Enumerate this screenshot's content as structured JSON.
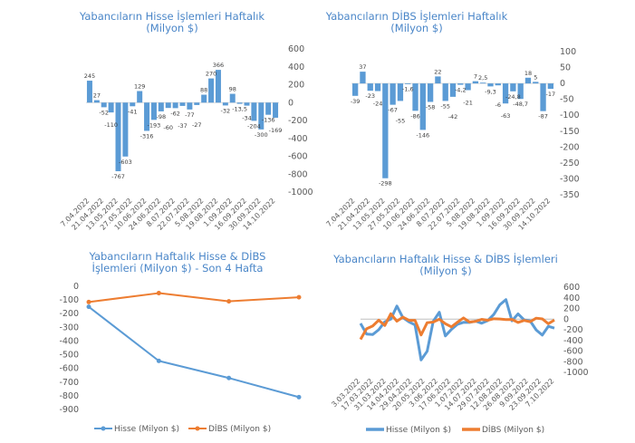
{
  "chart_data": [
    {
      "type": "bar",
      "title": "Yabancıların Hisse İşlemleri Haftalık (Milyon $)",
      "title_lines": [
        "Yabancıların Hisse İşlemleri Haftalık",
        "(Milyon $)"
      ],
      "xtick_labels": [
        "7.04.2022",
        "21.04.2022",
        "13.05.2022",
        "27.05.2022",
        "10.06.2022",
        "24.06.2022",
        "8.07.2022",
        "22.07.2022",
        "5.08.2022",
        "19.08.2022",
        "1.09.2022",
        "16.09.2022",
        "30.09.2022",
        "14.10.2022"
      ],
      "values": [
        245,
        27,
        -52,
        -110,
        -767,
        -603,
        -41,
        129,
        -316,
        -193,
        -98,
        -60,
        -62,
        -37,
        -77,
        -27,
        88,
        270,
        366,
        -32,
        98,
        -13.5,
        -34,
        -204,
        -300,
        -136,
        -169
      ],
      "data_labels": [
        "245",
        "27",
        "-52",
        "-110",
        "-767",
        "-603",
        "-41",
        "129",
        "-316",
        "-193",
        "-98",
        "-60",
        "-62",
        "-37",
        "-77",
        "-27",
        "88",
        "270",
        "366",
        "-32",
        "98",
        "-13,5",
        "-34",
        "-204",
        "-300",
        "-136",
        "-169"
      ],
      "ylim": [
        -1000,
        600
      ],
      "yticks": [
        "600",
        "400",
        "200",
        "0",
        "-200",
        "-400",
        "-600",
        "-800",
        "-1000"
      ],
      "y_axis_side": "right",
      "color": "#5b9bd5",
      "grid": false
    },
    {
      "type": "bar",
      "title": "Yabancıların DİBS İşlemleri Haftalık (Milyon $)",
      "title_lines": [
        "Yabancıların  DİBS İşlemleri Haftalık",
        "(Milyon $)"
      ],
      "xtick_labels": [
        "7.04.2022",
        "21.04.2022",
        "13.05.2022",
        "27.05.2022",
        "10.06.2022",
        "24.06.2022",
        "8.07.2022",
        "22.07.2022",
        "5.08.2022",
        "19.08.2022",
        "1.09.2022",
        "16.09.2022",
        "30.09.2022",
        "14.10.2022"
      ],
      "values": [
        -39,
        37,
        -23,
        -24,
        -298,
        -67,
        -55,
        -1.6,
        -86,
        -146,
        -58,
        22,
        -55,
        -42,
        -4.2,
        -21,
        7,
        2.5,
        -9.3,
        -6,
        -63,
        -24.8,
        -48.7,
        18,
        5,
        -87,
        -17
      ],
      "data_labels": [
        "-39",
        "37",
        "-23",
        "-24",
        "-298",
        "-67",
        "-55",
        "-1,6",
        "-86",
        "-146",
        "-58",
        "22",
        "-55",
        "-42",
        "-4,2",
        "-21",
        "7",
        "2,5",
        "-9,3",
        "-6",
        "-63",
        "-24,8",
        "-48,7",
        "18",
        "5",
        "-87",
        "-17"
      ],
      "ylim": [
        -350,
        100
      ],
      "yticks": [
        "100",
        "50",
        "0",
        "-50",
        "-100",
        "-150",
        "-200",
        "-250",
        "-300",
        "-350"
      ],
      "y_axis_side": "right",
      "color": "#5b9bd5",
      "grid": false
    },
    {
      "type": "line",
      "title": "Yabancıların Haftalık Hisse & DİBS İşlemleri (Milyon $) - Son 4 Hafta",
      "title_lines": [
        "Yabancıların  Haftalık  Hisse & DİBS",
        "İşlemleri  (Milyon $) - Son 4 Hafta"
      ],
      "ylim": [
        -900,
        0
      ],
      "yticks": [
        "0",
        "-100",
        "-200",
        "-300",
        "-400",
        "-500",
        "-600",
        "-700",
        "-800",
        "-900"
      ],
      "series": [
        {
          "name": "Hisse (Milyon $)",
          "color": "#5b9bd5",
          "values": [
            -150,
            -545,
            -670,
            -810
          ]
        },
        {
          "name": "DİBS (Milyon $)",
          "color": "#ed7d31",
          "values": [
            -115,
            -50,
            -110,
            -80
          ]
        }
      ],
      "legend": "bottom",
      "grid": false
    },
    {
      "type": "line",
      "title": "Yabancıların Haftalık Hisse & DİBS İşlemleri (Milyon $)",
      "title_lines": [
        "Yabancıların Haftalık Hisse & DİBS İşlemleri",
        "(Milyon $)"
      ],
      "xtick_labels": [
        "3.03.2022",
        "17.03.2022",
        "31.03.2022",
        "14.04.2022",
        "29.04.2022",
        "20.05.2022",
        "3.06.2022",
        "17.06.2022",
        "1.07.2022",
        "14.07.2022",
        "29.07.2022",
        "12.08.2022",
        "26.08.2022",
        "9.09.2022",
        "23.09.2022",
        "7.10.2022"
      ],
      "ylim": [
        -1000,
        600
      ],
      "yticks": [
        "600",
        "400",
        "200",
        "0",
        "-200",
        "-400",
        "-600",
        "-800",
        "-1000"
      ],
      "y_axis_side": "right",
      "series": [
        {
          "name": "Hisse (Milyon $)",
          "color": "#5b9bd5",
          "values": [
            -80,
            -280,
            -290,
            -200,
            -50,
            0,
            245,
            27,
            -52,
            -110,
            -767,
            -603,
            -41,
            129,
            -316,
            -193,
            -98,
            -60,
            -62,
            -37,
            -77,
            -27,
            88,
            270,
            366,
            -32,
            98,
            -13.5,
            -34,
            -204,
            -300,
            -136,
            -169
          ]
        },
        {
          "name": "DİBS (Milyon $)",
          "color": "#ed7d31",
          "values": [
            -380,
            -180,
            -130,
            -20,
            -120,
            100,
            -39,
            37,
            -23,
            -24,
            -298,
            -67,
            -55,
            -1.6,
            -86,
            -146,
            -58,
            22,
            -55,
            -42,
            -4.2,
            -21,
            7,
            2.5,
            -9.3,
            -6,
            -63,
            -24.8,
            -48.7,
            18,
            5,
            -87,
            -17
          ]
        }
      ],
      "legend": "bottom",
      "grid": false
    }
  ]
}
